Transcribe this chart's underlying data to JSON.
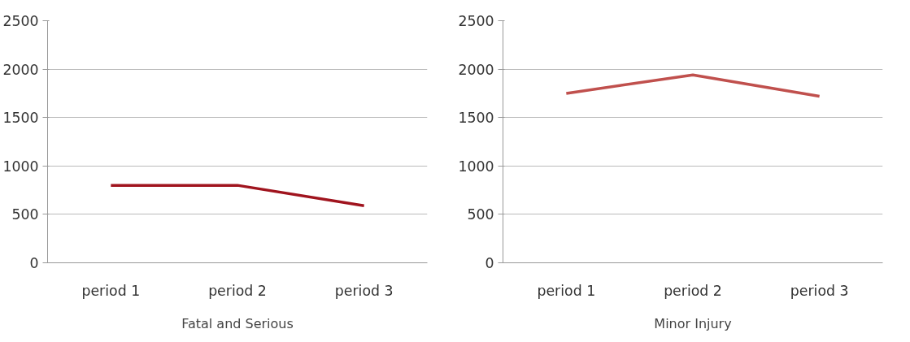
{
  "chart_data": [
    {
      "type": "line",
      "categories": [
        "period 1",
        "period 2",
        "period 3"
      ],
      "xlabel": "Fatal and Serious",
      "values": [
        800,
        800,
        590
      ],
      "color": "#a0141e",
      "ylim": [
        0,
        2500
      ],
      "yticks": [
        0,
        500,
        1000,
        1500,
        2000,
        2500
      ],
      "grid": "y",
      "marker": "none",
      "line_style": "solid"
    },
    {
      "type": "line",
      "categories": [
        "period 1",
        "period 2",
        "period 3"
      ],
      "xlabel": "Minor Injury",
      "values": [
        1750,
        1940,
        1720
      ],
      "color": "#c0504d",
      "ylim": [
        0,
        2500
      ],
      "yticks": [
        0,
        500,
        1000,
        1500,
        2000,
        2500
      ],
      "grid": "y",
      "marker": "none",
      "line_style": "solid"
    }
  ]
}
